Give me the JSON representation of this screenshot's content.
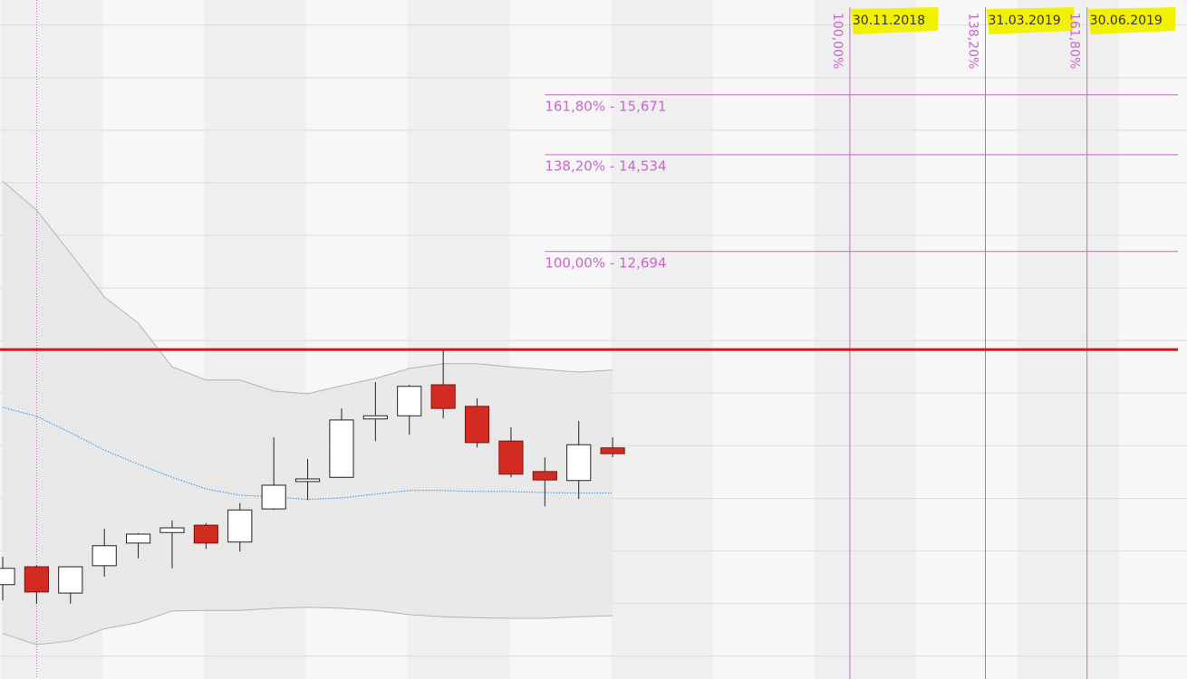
{
  "chart_data": {
    "type": "candlestick",
    "x": [
      0,
      1,
      2,
      3,
      4,
      5,
      6,
      7,
      8,
      9,
      10,
      11,
      12,
      13,
      14,
      15,
      16,
      17,
      18
    ],
    "open": [
      6.36,
      6.7,
      6.2,
      6.72,
      7.15,
      7.35,
      7.49,
      7.17,
      7.8,
      8.32,
      8.4,
      9.51,
      9.57,
      10.16,
      9.75,
      9.09,
      8.51,
      8.34,
      8.96
    ],
    "high": [
      6.89,
      6.73,
      6.7,
      7.42,
      7.34,
      7.58,
      7.53,
      7.91,
      9.16,
      8.75,
      9.71,
      10.21,
      10.16,
      10.81,
      9.9,
      9.35,
      8.78,
      9.47,
      9.16
    ],
    "low": [
      6.06,
      6.0,
      6.0,
      6.51,
      6.86,
      6.67,
      7.04,
      6.99,
      7.78,
      7.97,
      8.39,
      9.09,
      9.21,
      9.52,
      8.97,
      8.4,
      7.85,
      7.99,
      8.78
    ],
    "close": [
      6.67,
      6.22,
      6.7,
      7.1,
      7.32,
      7.44,
      7.15,
      7.78,
      8.25,
      8.37,
      9.49,
      9.57,
      10.13,
      9.71,
      9.06,
      8.46,
      8.35,
      9.02,
      8.85
    ],
    "up_color": "#ffffff",
    "down_color": "#d32a22",
    "bands": {
      "upper": [
        14.03,
        13.48,
        12.66,
        11.83,
        11.33,
        10.5,
        10.25,
        10.25,
        10.04,
        9.99,
        10.14,
        10.28,
        10.47,
        10.56,
        10.56,
        10.5,
        10.45,
        10.4,
        10.44
      ],
      "middle": [
        9.73,
        9.56,
        9.25,
        8.92,
        8.65,
        8.4,
        8.18,
        8.06,
        8.03,
        7.98,
        8.01,
        8.08,
        8.15,
        8.15,
        8.13,
        8.13,
        8.11,
        8.1,
        8.1
      ],
      "lower": [
        5.43,
        5.22,
        5.29,
        5.52,
        5.64,
        5.86,
        5.87,
        5.87,
        5.91,
        5.93,
        5.91,
        5.87,
        5.79,
        5.75,
        5.73,
        5.72,
        5.72,
        5.75,
        5.77
      ],
      "fill": "#e6e6e6",
      "edge_color": "#b4b4b4",
      "middle_color": "#3b8fe0"
    },
    "resistance": 10.83,
    "resistance_color": "#e01010",
    "marker_x": 1,
    "levels": [
      {
        "value": 15.671,
        "label": "161,80% - 15,671"
      },
      {
        "value": 14.534,
        "label": "138,20% - 14,534"
      },
      {
        "value": 12.694,
        "label": "100,00% - 12,694"
      }
    ],
    "level_start_x": 16,
    "fib_color": "#cc66cc",
    "time_lines": [
      {
        "x": 25,
        "date": "30.11.2018",
        "ratio": "100,00%"
      },
      {
        "x": 29,
        "date": "31.03.2019",
        "ratio": "138,20%"
      },
      {
        "x": 32,
        "date": "30.06.2019",
        "ratio": "161,80%"
      }
    ],
    "highlight_color": "#f2f200",
    "xlim": [
      -0.08,
      34.95
    ],
    "ylim": [
      4.566,
      17.475
    ],
    "yticks": [
      5,
      6,
      7,
      8,
      9,
      10,
      11,
      12,
      13,
      14,
      15,
      16,
      17
    ],
    "grid": true
  }
}
